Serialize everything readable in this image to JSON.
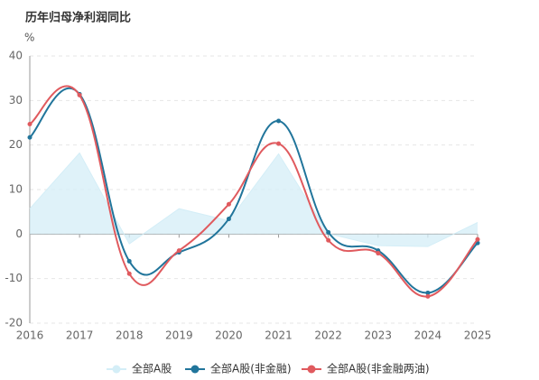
{
  "chart_data": {
    "type": "line",
    "title": "历年归母净利润同比",
    "y_unit": "%",
    "categories": [
      "2016",
      "2017",
      "2018",
      "2019",
      "2020",
      "2021",
      "2022",
      "2023",
      "2024",
      "2025"
    ],
    "ylim": [
      -20,
      40
    ],
    "yticks": [
      -20,
      -10,
      0,
      10,
      20,
      30,
      40
    ],
    "grid": true,
    "legend": "bottom",
    "series": [
      {
        "name": "全部A股",
        "color": "#d4eef7",
        "area": true,
        "smooth": false,
        "markers": false,
        "values": [
          5.7,
          18.2,
          -2.2,
          5.7,
          3.0,
          18.0,
          0.1,
          -2.6,
          -2.8,
          2.6
        ]
      },
      {
        "name": "全部A股(非金融)",
        "color": "#21759b",
        "area": false,
        "smooth": true,
        "markers": true,
        "values": [
          21.7,
          31.4,
          -6.1,
          -4.1,
          3.4,
          25.4,
          0.4,
          -3.7,
          -13.2,
          -2.0
        ]
      },
      {
        "name": "全部A股(非金融两油)",
        "color": "#e05a5e",
        "area": false,
        "smooth": true,
        "markers": true,
        "values": [
          24.7,
          31.2,
          -8.9,
          -3.7,
          6.7,
          20.3,
          -1.4,
          -4.3,
          -14.0,
          -1.2
        ]
      }
    ]
  }
}
